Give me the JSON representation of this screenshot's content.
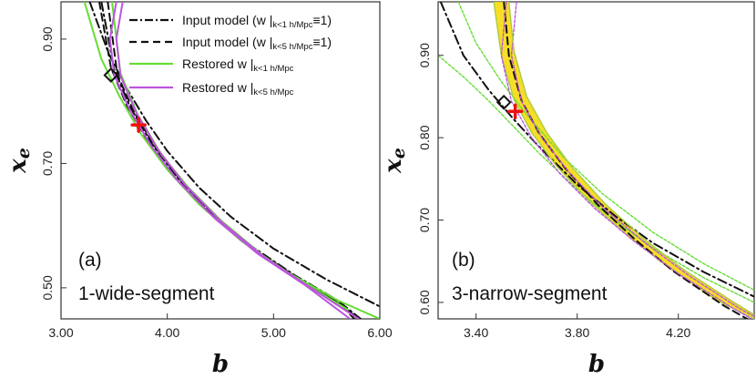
{
  "chart_data": [
    {
      "type": "line",
      "panel_label": "(a)",
      "panel_title": "1-wide-segment",
      "xlabel": "b",
      "ylabel": "xe",
      "xlim": [
        3.0,
        6.0
      ],
      "ylim": [
        0.45,
        0.96
      ],
      "xticks": [
        "3.00",
        "4.00",
        "5.00",
        "6.00"
      ],
      "yticks": [
        "0.50",
        "0.70",
        "0.90"
      ],
      "xtick_values": [
        3.0,
        4.0,
        5.0,
        6.0
      ],
      "ytick_values": [
        0.5,
        0.7,
        0.9
      ],
      "legend": {
        "position": "top-right",
        "entries": [
          {
            "label": "Input model (w |",
            "sub": "k<1 h/Mpc",
            "suffix": "≡1)",
            "style": "dashdot",
            "color": "#111111"
          },
          {
            "label": "Input model (w |",
            "sub": "k<5 h/Mpc",
            "suffix": "≡1)",
            "style": "dashed",
            "color": "#111111"
          },
          {
            "label": "Restored w |",
            "sub": "k<1 h/Mpc",
            "suffix": "",
            "style": "solid",
            "color": "#66dd33"
          },
          {
            "label": "Restored w |",
            "sub": "k<5 h/Mpc",
            "suffix": "",
            "style": "solid",
            "color": "#bb55dd"
          }
        ]
      },
      "markers": [
        {
          "name": "diamond",
          "x": 3.47,
          "y": 0.842,
          "color": "#111111"
        },
        {
          "name": "cross",
          "x": 3.73,
          "y": 0.762,
          "color": "#ee1111"
        }
      ],
      "series": [
        {
          "name": "Input model k<1 outer",
          "style": "dashdot",
          "color": "#111111",
          "x": [
            3.27,
            3.45,
            3.6,
            3.8,
            4.0,
            4.3,
            4.6,
            5.0,
            5.5,
            6.0
          ],
          "y": [
            0.96,
            0.876,
            0.826,
            0.769,
            0.72,
            0.661,
            0.614,
            0.563,
            0.513,
            0.47
          ]
        },
        {
          "name": "Input model k<1 inner",
          "style": "dashdot",
          "color": "#111111",
          "x": [
            3.38,
            3.5,
            3.65,
            3.85,
            4.1,
            4.4,
            4.8,
            5.2,
            5.6,
            5.82
          ],
          "y": [
            0.96,
            0.852,
            0.791,
            0.733,
            0.676,
            0.623,
            0.566,
            0.52,
            0.48,
            0.45
          ]
        },
        {
          "name": "Input model k<5 outer",
          "style": "dashed",
          "color": "#111111",
          "x": [
            3.36,
            3.47,
            3.62,
            3.82,
            4.07,
            4.37,
            4.77,
            5.17,
            5.57,
            5.8
          ],
          "y": [
            0.96,
            0.854,
            0.793,
            0.735,
            0.677,
            0.624,
            0.567,
            0.521,
            0.481,
            0.45
          ]
        },
        {
          "name": "Input model k<5 inner",
          "style": "dashed",
          "color": "#111111",
          "x": [
            3.44,
            3.53,
            3.68,
            3.88,
            4.13,
            4.43,
            4.83,
            5.23,
            5.63,
            5.76
          ],
          "y": [
            0.96,
            0.843,
            0.785,
            0.728,
            0.672,
            0.618,
            0.561,
            0.515,
            0.473,
            0.45
          ]
        },
        {
          "name": "Restored k<1 outer",
          "style": "solid",
          "color": "#66dd33",
          "x": [
            3.22,
            3.38,
            3.55,
            3.75,
            4.0,
            4.3,
            4.7,
            5.1,
            5.6,
            6.0
          ],
          "y": [
            0.96,
            0.868,
            0.808,
            0.748,
            0.69,
            0.634,
            0.575,
            0.528,
            0.48,
            0.45
          ]
        },
        {
          "name": "Restored k<1 inner",
          "style": "solid",
          "color": "#66dd33",
          "x": [
            3.48,
            3.56,
            3.72,
            3.95,
            4.2,
            4.5,
            4.9,
            5.3,
            5.7
          ],
          "y": [
            0.96,
            0.845,
            0.779,
            0.713,
            0.661,
            0.609,
            0.552,
            0.506,
            0.465
          ]
        },
        {
          "name": "Restored k<5 outer",
          "style": "solid",
          "color": "#bb55dd",
          "x": [
            3.52,
            3.46,
            3.5,
            3.65,
            3.85,
            4.1,
            4.45,
            4.85,
            5.3,
            5.72
          ],
          "y": [
            0.96,
            0.9,
            0.843,
            0.785,
            0.728,
            0.672,
            0.611,
            0.555,
            0.504,
            0.45
          ]
        },
        {
          "name": "Restored k<5 inner",
          "style": "solid",
          "color": "#bb55dd",
          "x": [
            3.58,
            3.52,
            3.56,
            3.71,
            3.91,
            4.16,
            4.51,
            4.91,
            5.36,
            5.8
          ],
          "y": [
            0.96,
            0.9,
            0.841,
            0.781,
            0.723,
            0.667,
            0.606,
            0.55,
            0.499,
            0.45
          ]
        }
      ]
    },
    {
      "type": "line",
      "panel_label": "(b)",
      "panel_title": "3-narrow-segment",
      "xlabel": "b",
      "ylabel": "xe",
      "xlim": [
        3.25,
        4.5
      ],
      "ylim": [
        0.58,
        0.965
      ],
      "xticks": [
        "3.40",
        "3.80",
        "4.20"
      ],
      "yticks": [
        "0.60",
        "0.70",
        "0.80",
        "0.90"
      ],
      "xtick_values": [
        3.4,
        3.8,
        4.2
      ],
      "ytick_values": [
        0.6,
        0.7,
        0.8,
        0.9
      ],
      "markers": [
        {
          "name": "diamond",
          "x": 3.51,
          "y": 0.843,
          "color": "#111111"
        },
        {
          "name": "cross",
          "x": 3.555,
          "y": 0.832,
          "color": "#ee1111"
        }
      ],
      "series": [
        {
          "name": "Restored k<1 outer",
          "style": "dotted-solid",
          "color": "#66dd33",
          "x": [
            3.25,
            3.35,
            3.45,
            3.55,
            3.65,
            3.8,
            3.95,
            4.1,
            4.3,
            4.5
          ],
          "y": [
            0.9,
            0.874,
            0.845,
            0.813,
            0.781,
            0.737,
            0.699,
            0.666,
            0.63,
            0.6
          ]
        },
        {
          "name": "Input model k<1 outer",
          "style": "dashdot",
          "color": "#111111",
          "x": [
            3.26,
            3.35,
            3.45,
            3.55,
            3.65,
            3.8,
            3.95,
            4.1,
            4.3,
            4.5
          ],
          "y": [
            0.965,
            0.9,
            0.858,
            0.822,
            0.789,
            0.743,
            0.705,
            0.672,
            0.637,
            0.607
          ]
        },
        {
          "name": "Restored k<1 inner",
          "style": "dotted-solid",
          "color": "#66dd33",
          "x": [
            3.33,
            3.4,
            3.5,
            3.6,
            3.75,
            3.9,
            4.1,
            4.3,
            4.5
          ],
          "y": [
            0.965,
            0.915,
            0.868,
            0.828,
            0.775,
            0.732,
            0.685,
            0.647,
            0.615
          ]
        },
        {
          "name": "Restored band outer",
          "style": "solid",
          "color": "#aacc44",
          "x": [
            3.47,
            3.5,
            3.55,
            3.62,
            3.72,
            3.85,
            4.0,
            4.15,
            4.35,
            4.5
          ],
          "y": [
            0.965,
            0.9,
            0.846,
            0.806,
            0.765,
            0.722,
            0.681,
            0.645,
            0.603,
            0.58
          ]
        },
        {
          "name": "Input model k<5",
          "style": "dashed",
          "color": "#111111",
          "x": [
            3.51,
            3.53,
            3.58,
            3.65,
            3.75,
            3.88,
            4.03,
            4.18,
            4.38,
            4.5
          ],
          "y": [
            0.965,
            0.9,
            0.845,
            0.805,
            0.764,
            0.719,
            0.676,
            0.638,
            0.596,
            0.575
          ]
        },
        {
          "name": "Restored k<5 outer",
          "style": "dotted-solid",
          "color": "#bb55dd",
          "x": [
            3.52,
            3.5,
            3.54,
            3.62,
            3.73,
            3.87,
            4.03,
            4.2,
            4.4,
            4.5
          ],
          "y": [
            0.965,
            0.9,
            0.844,
            0.8,
            0.757,
            0.714,
            0.673,
            0.635,
            0.596,
            0.578
          ]
        },
        {
          "name": "Restored k<5 inner",
          "style": "dotted-solid",
          "color": "#bb55dd",
          "x": [
            3.56,
            3.54,
            3.58,
            3.66,
            3.77,
            3.91,
            4.07,
            4.24,
            4.44,
            4.5
          ],
          "y": [
            0.965,
            0.9,
            0.844,
            0.8,
            0.757,
            0.713,
            0.672,
            0.633,
            0.593,
            0.583
          ]
        },
        {
          "name": "Restored band inner",
          "style": "solid",
          "color": "#aacc44",
          "x": [
            3.53,
            3.55,
            3.6,
            3.68,
            3.78,
            3.91,
            4.06,
            4.22,
            4.42,
            4.5
          ],
          "y": [
            0.965,
            0.905,
            0.85,
            0.806,
            0.764,
            0.72,
            0.678,
            0.64,
            0.6,
            0.585
          ]
        }
      ],
      "band": {
        "color": "#f5d800",
        "upper": "Restored band outer",
        "lower": "Restored band inner"
      }
    }
  ]
}
